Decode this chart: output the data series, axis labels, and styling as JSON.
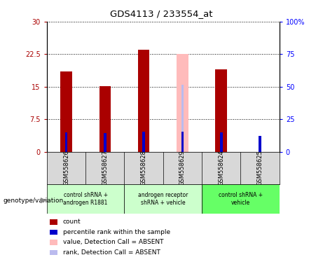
{
  "title": "GDS4113 / 233554_at",
  "samples": [
    "GSM558626",
    "GSM558627",
    "GSM558628",
    "GSM558629",
    "GSM558624",
    "GSM558625"
  ],
  "count_values": [
    18.5,
    15.2,
    23.5,
    null,
    19.0,
    null
  ],
  "rank_values": [
    15.0,
    14.3,
    15.5,
    15.5,
    15.0,
    12.5
  ],
  "absent_value_values": [
    null,
    null,
    null,
    22.5,
    19.0,
    null
  ],
  "absent_rank_values": [
    null,
    null,
    null,
    15.5,
    15.0,
    null
  ],
  "count_color": "#aa0000",
  "rank_color": "#0000cc",
  "absent_value_color": "#ffbbbb",
  "absent_rank_color": "#bbbbee",
  "ylim_left": [
    0,
    30
  ],
  "ylim_right": [
    0,
    100
  ],
  "yticks_left": [
    0,
    7.5,
    15,
    22.5,
    30
  ],
  "yticks_right": [
    0,
    25,
    50,
    75,
    100
  ],
  "ytick_labels_left": [
    "0",
    "7.5",
    "15",
    "22.5",
    "30"
  ],
  "ytick_labels_right": [
    "0",
    "25",
    "50",
    "75",
    "100%"
  ],
  "bar_width": 0.3,
  "rank_bar_width": 0.07,
  "group_configs": [
    {
      "start": 0,
      "end": 1,
      "color": "#ccffcc",
      "label": "control shRNA +\nandrogen R1881"
    },
    {
      "start": 2,
      "end": 3,
      "color": "#ccffcc",
      "label": "androgen receptor\nshRNA + vehicle"
    },
    {
      "start": 4,
      "end": 5,
      "color": "#66ff66",
      "label": "control shRNA +\nvehicle"
    }
  ],
  "genotype_label": "genotype/variation",
  "legend_items": [
    {
      "color": "#aa0000",
      "label": "count"
    },
    {
      "color": "#0000cc",
      "label": "percentile rank within the sample"
    },
    {
      "color": "#ffbbbb",
      "label": "value, Detection Call = ABSENT"
    },
    {
      "color": "#bbbbee",
      "label": "rank, Detection Call = ABSENT"
    }
  ]
}
